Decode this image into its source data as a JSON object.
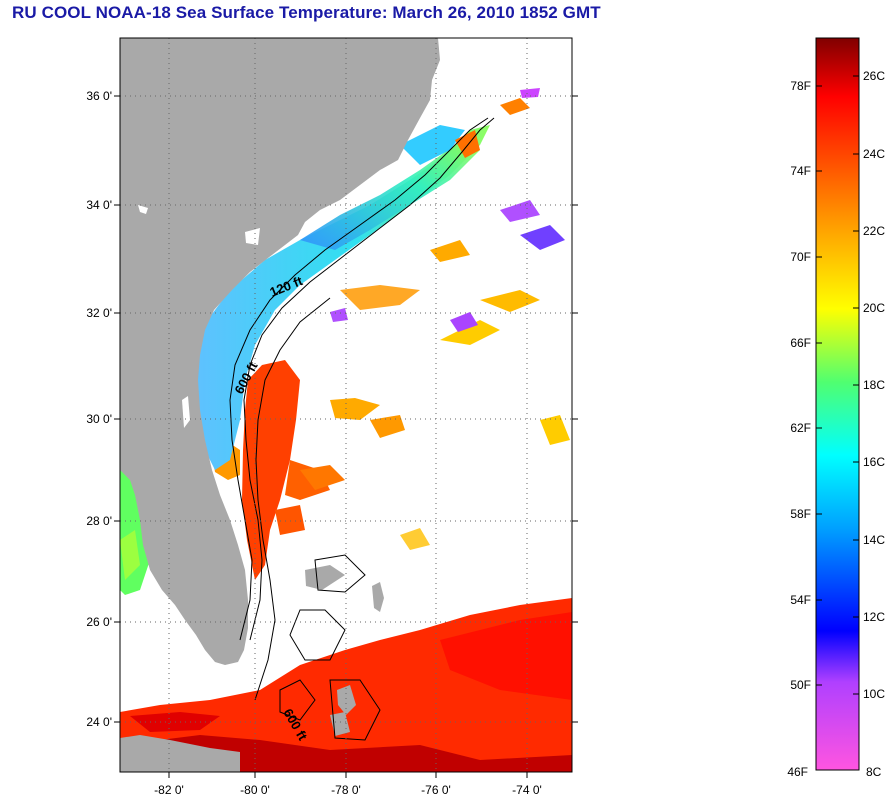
{
  "title": "RU COOL  NOAA-18  Sea Surface Temperature:  March 26, 2010 1852 GMT",
  "map": {
    "lat_labels": [
      "36 0'",
      "34 0'",
      "32 0'",
      "30 0'",
      "28 0'",
      "26 0'",
      "24 0'"
    ],
    "lon_labels": [
      "-82 0'",
      "-80 0'",
      "-78 0'",
      "-76 0'",
      "-74 0'"
    ],
    "contour_labels": [
      "120 ft",
      "600 ft",
      "600 ft"
    ],
    "colors": {
      "land": "#a9a9a9",
      "ocean_no_data": "#ffffff",
      "grid": "#555555"
    }
  },
  "colorbar": {
    "fahrenheit_labels": [
      "78F",
      "74F",
      "70F",
      "66F",
      "62F",
      "58F",
      "54F",
      "50F",
      "46F"
    ],
    "celsius_labels": [
      "26C",
      "24C",
      "22C",
      "20C",
      "18C",
      "16C",
      "14C",
      "12C",
      "10C",
      "8C"
    ],
    "colors": [
      "#ff55e0",
      "#b040ff",
      "#0000ff",
      "#00a0ff",
      "#00ffff",
      "#50ff70",
      "#ffff00",
      "#ffaa00",
      "#ff5000",
      "#ff0000",
      "#800000"
    ]
  }
}
